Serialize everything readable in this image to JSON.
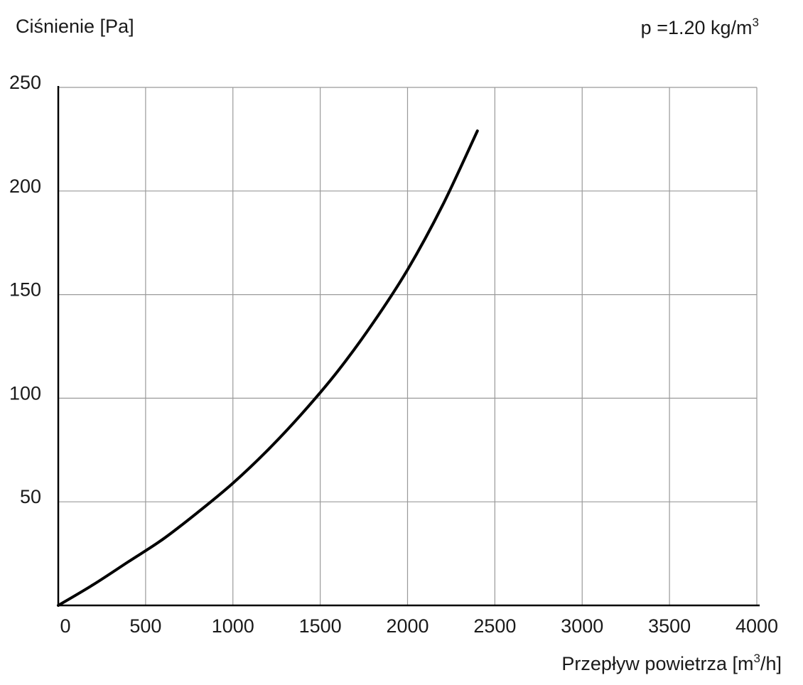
{
  "chart_data": {
    "type": "line",
    "ylabel": "Ciśnienie [Pa]",
    "xlabel_main": "Przepływ powietrza [m",
    "xlabel_sup": "3",
    "xlabel_tail": "/h]",
    "density_main": "p =1.20 kg/m",
    "density_sup": "3",
    "xlim": [
      0,
      4000
    ],
    "ylim": [
      0,
      250
    ],
    "x_ticks": [
      0,
      500,
      1000,
      1500,
      2000,
      2500,
      3000,
      3500,
      4000
    ],
    "x_tick_labels": [
      "0",
      "500",
      "1000",
      "1500",
      "2000",
      "2500",
      "3000",
      "3500",
      "4000"
    ],
    "y_ticks": [
      50,
      100,
      150,
      200,
      250
    ],
    "y_tick_labels": [
      "50",
      "100",
      "150",
      "200",
      "250"
    ],
    "grid": true,
    "series": [
      {
        "color": "#000000",
        "x": [
          0,
          200,
          400,
          600,
          800,
          1000,
          1200,
          1400,
          1600,
          1800,
          2000,
          2200,
          2400
        ],
        "y": [
          0,
          10,
          21,
          32,
          45,
          59,
          75,
          93,
          113,
          136,
          162,
          193,
          229
        ]
      }
    ]
  }
}
